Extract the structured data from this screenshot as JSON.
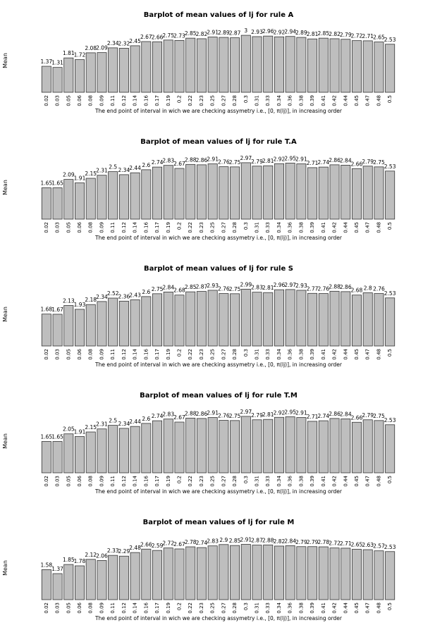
{
  "chart_data": [
    {
      "type": "bar",
      "title": "Barplot of mean values of lj for rule A",
      "ylabel": "Mean",
      "xlabel": "The end point of interval in wich we are checking assymetry i.e., [0, π(lj)], in increasing order",
      "categories": [
        "0.02",
        "0.03",
        "0.05",
        "0.06",
        "0.08",
        "0.09",
        "0.11",
        "0.12",
        "0.14",
        "0.16",
        "0.17",
        "0.19",
        "0.2",
        "0.22",
        "0.23",
        "0.25",
        "0.27",
        "0.28",
        "0.3",
        "0.31",
        "0.33",
        "0.34",
        "0.36",
        "0.38",
        "0.39",
        "0.41",
        "0.42",
        "0.44",
        "0.45",
        "0.47",
        "0.48",
        "0.5"
      ],
      "values": [
        1.37,
        1.31,
        1.81,
        1.72,
        2.08,
        2.09,
        2.34,
        2.32,
        2.45,
        2.67,
        2.66,
        2.75,
        2.73,
        2.85,
        2.82,
        2.91,
        2.89,
        2.87,
        3,
        2.93,
        2.96,
        2.92,
        2.94,
        2.89,
        2.81,
        2.85,
        2.82,
        2.79,
        2.72,
        2.71,
        2.65,
        2.53
      ],
      "value_labels": [
        "1.37",
        "1.31",
        "1.81",
        "1.72",
        "2.08",
        "2.09",
        "2.34",
        "2.32",
        "2.45",
        "2.67",
        "2.66",
        "2.75",
        "2.73",
        "2.85",
        "2.82",
        "2.91",
        "2.89",
        "2.87",
        "3",
        "2.93",
        "2.96",
        "2.92",
        "2.94",
        "2.89",
        "2.81",
        "2.85",
        "2.82",
        "2.79",
        "2.72",
        "2.71",
        "2.65",
        "2.53"
      ],
      "ylim": [
        0,
        3.3
      ]
    },
    {
      "type": "bar",
      "title": "Barplot of mean values of lj for rule T.A",
      "ylabel": "Mean",
      "xlabel": "The end point of interval in wich we are checking assymetry i.e., [0, π(lj)], in increasing order",
      "categories": [
        "0.02",
        "0.03",
        "0.05",
        "0.06",
        "0.08",
        "0.09",
        "0.11",
        "0.12",
        "0.14",
        "0.16",
        "0.17",
        "0.19",
        "0.2",
        "0.22",
        "0.23",
        "0.25",
        "0.27",
        "0.28",
        "0.3",
        "0.31",
        "0.33",
        "0.34",
        "0.36",
        "0.38",
        "0.39",
        "0.41",
        "0.42",
        "0.44",
        "0.45",
        "0.47",
        "0.48",
        "0.5"
      ],
      "values": [
        1.65,
        1.65,
        2.09,
        1.91,
        2.15,
        2.31,
        2.5,
        2.34,
        2.44,
        2.6,
        2.74,
        2.83,
        2.67,
        2.88,
        2.86,
        2.91,
        2.76,
        2.75,
        2.97,
        2.79,
        2.81,
        2.92,
        2.95,
        2.91,
        2.71,
        2.74,
        2.86,
        2.84,
        2.66,
        2.79,
        2.75,
        2.53
      ],
      "value_labels": [
        "1.65",
        "1.65",
        "2.09",
        "1.91",
        "2.15",
        "2.31",
        "2.5",
        "2.34",
        "2.44",
        "2.6",
        "2.74",
        "2.83",
        "2.67",
        "2.88",
        "2.86",
        "2.91",
        "2.76",
        "2.75",
        "2.97",
        "2.79",
        "2.81",
        "2.92",
        "2.95",
        "2.91",
        "2.71",
        "2.74",
        "2.86",
        "2.84",
        "2.66",
        "2.79",
        "2.75",
        "2.53"
      ],
      "ylim": [
        0,
        3.3
      ]
    },
    {
      "type": "bar",
      "title": "Barplot of mean values of lj for rule S",
      "ylabel": "Mean",
      "xlabel": "The end point of interval in wich we are checking assymetry i.e., [0, π(lj)], in increasing order",
      "categories": [
        "0.02",
        "0.03",
        "0.05",
        "0.06",
        "0.08",
        "0.09",
        "0.11",
        "0.12",
        "0.14",
        "0.16",
        "0.17",
        "0.19",
        "0.2",
        "0.22",
        "0.23",
        "0.25",
        "0.27",
        "0.28",
        "0.3",
        "0.31",
        "0.33",
        "0.34",
        "0.36",
        "0.38",
        "0.39",
        "0.41",
        "0.42",
        "0.44",
        "0.45",
        "0.47",
        "0.48",
        "0.5"
      ],
      "values": [
        1.68,
        1.67,
        2.13,
        1.93,
        2.18,
        2.34,
        2.52,
        2.36,
        2.43,
        2.6,
        2.75,
        2.84,
        2.68,
        2.85,
        2.87,
        2.93,
        2.76,
        2.75,
        2.99,
        2.83,
        2.81,
        2.96,
        2.97,
        2.93,
        2.77,
        2.76,
        2.88,
        2.86,
        2.68,
        2.8,
        2.76,
        2.53
      ],
      "value_labels": [
        "1.68",
        "1.67",
        "2.13",
        "1.93",
        "2.18",
        "2.34",
        "2.52",
        "2.36",
        "2.43",
        "2.6",
        "2.75",
        "2.84",
        "2.68",
        "2.85",
        "2.87",
        "2.93",
        "2.76",
        "2.75",
        "2.99",
        "2.83",
        "2.81",
        "2.96",
        "2.97",
        "2.93",
        "2.77",
        "2.76",
        "2.88",
        "2.86",
        "2.68",
        "2.8",
        "2.76",
        "2.53"
      ],
      "ylim": [
        0,
        3.3
      ]
    },
    {
      "type": "bar",
      "title": "Barplot of mean values of lj for rule T.M",
      "ylabel": "Mean",
      "xlabel": "The end point of interval in wich we are checking assymetry i.e., [0, π(lj)], in increasing order",
      "categories": [
        "0.02",
        "0.03",
        "0.05",
        "0.06",
        "0.08",
        "0.09",
        "0.11",
        "0.12",
        "0.14",
        "0.16",
        "0.17",
        "0.19",
        "0.2",
        "0.22",
        "0.23",
        "0.25",
        "0.27",
        "0.28",
        "0.3",
        "0.31",
        "0.33",
        "0.34",
        "0.36",
        "0.38",
        "0.39",
        "0.41",
        "0.42",
        "0.44",
        "0.45",
        "0.47",
        "0.48",
        "0.5"
      ],
      "values": [
        1.65,
        1.65,
        2.05,
        1.91,
        2.15,
        2.31,
        2.5,
        2.34,
        2.44,
        2.6,
        2.74,
        2.83,
        2.67,
        2.88,
        2.86,
        2.91,
        2.76,
        2.75,
        2.97,
        2.79,
        2.81,
        2.92,
        2.95,
        2.91,
        2.71,
        2.74,
        2.86,
        2.84,
        2.66,
        2.79,
        2.75,
        2.53
      ],
      "value_labels": [
        "1.65",
        "1.65",
        "2.05",
        "1.91",
        "2.15",
        "2.31",
        "2.5",
        "2.34",
        "2.44",
        "2.6",
        "2.74",
        "2.83",
        "2.67",
        "2.88",
        "2.86",
        "2.91",
        "2.76",
        "2.75",
        "2.97",
        "2.79",
        "2.81",
        "2.92",
        "2.95",
        "2.91",
        "2.71",
        "2.74",
        "2.86",
        "2.84",
        "2.66",
        "2.79",
        "2.75",
        "2.53"
      ],
      "ylim": [
        0,
        3.3
      ]
    },
    {
      "type": "bar",
      "title": "Barplot of mean values of lj for rule M",
      "ylabel": "Mean",
      "xlabel": "The end point of interval in wich we are checking assymetry i.e., [0, π(lj)], in increasing order",
      "categories": [
        "0.02",
        "0.03",
        "0.05",
        "0.06",
        "0.08",
        "0.09",
        "0.11",
        "0.12",
        "0.14",
        "0.16",
        "0.17",
        "0.19",
        "0.2",
        "0.22",
        "0.23",
        "0.25",
        "0.27",
        "0.28",
        "0.3",
        "0.31",
        "0.33",
        "0.34",
        "0.36",
        "0.38",
        "0.39",
        "0.41",
        "0.42",
        "0.44",
        "0.45",
        "0.47",
        "0.48",
        "0.5"
      ],
      "values": [
        1.58,
        1.37,
        1.85,
        1.78,
        2.12,
        2.06,
        2.33,
        2.29,
        2.48,
        2.66,
        2.59,
        2.72,
        2.67,
        2.78,
        2.74,
        2.83,
        2.9,
        2.85,
        2.91,
        2.87,
        2.88,
        2.82,
        2.84,
        2.79,
        2.79,
        2.78,
        2.72,
        2.71,
        2.65,
        2.63,
        2.57,
        2.53
      ],
      "value_labels": [
        "1.58",
        "1.37",
        "1.85",
        "1.78",
        "2.12",
        "2.06",
        "2.33",
        "2.29",
        "2.48",
        "2.66",
        "2.59",
        "2.72",
        "2.67",
        "2.78",
        "2.74",
        "2.83",
        "2.9",
        "2.85",
        "2.91",
        "2.87",
        "2.88",
        "2.82",
        "2.84",
        "2.79",
        "2.79",
        "2.78",
        "2.72",
        "2.71",
        "2.65",
        "2.63",
        "2.57",
        "2.53"
      ],
      "ylim": [
        0,
        3.3
      ]
    }
  ],
  "colors": {
    "bar_fill": "#bebebe",
    "bar_stroke": "#333333",
    "text": "#000000"
  }
}
